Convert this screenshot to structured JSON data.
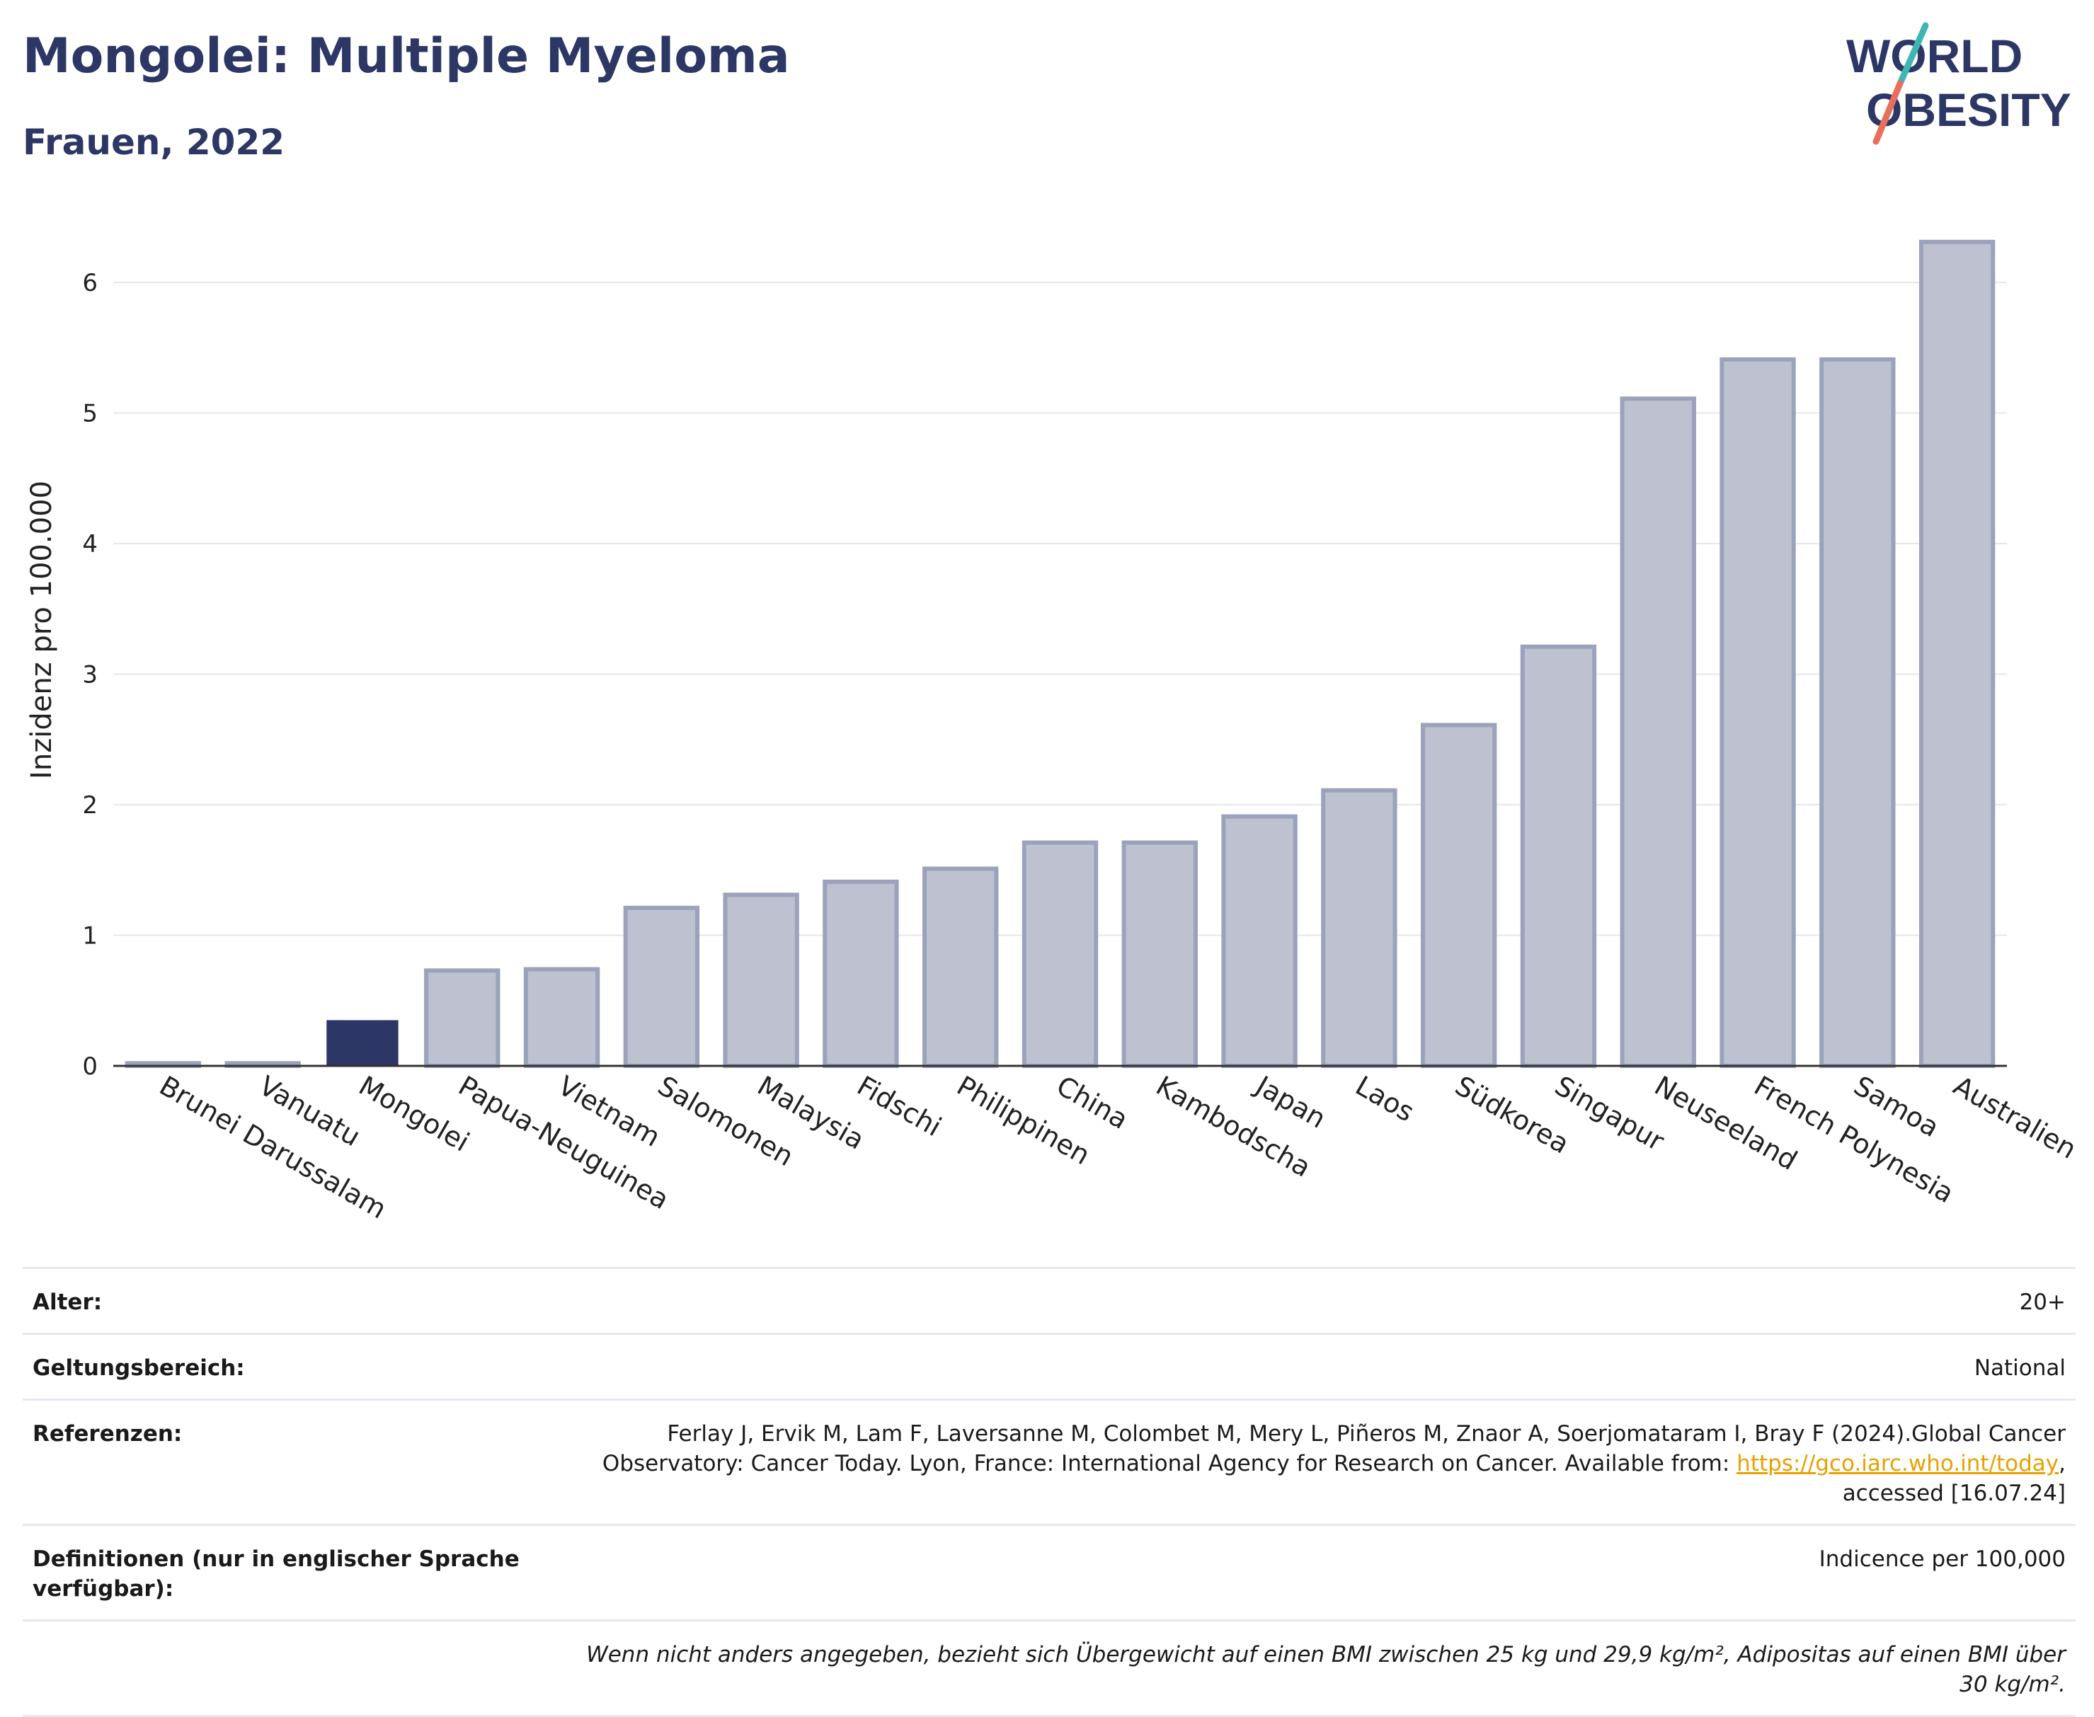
{
  "header": {
    "title": "Mongolei: Multiple Myeloma",
    "subtitle": "Frauen, 2022"
  },
  "logo": {
    "line1": "WORLD",
    "line2": "OBESITY",
    "accent_top": "#3fb6b3",
    "accent_bottom": "#e76f5c",
    "text_color": "#2c3765"
  },
  "colors": {
    "highlight": "#2c3765",
    "bar_fill": "#bdc1d0",
    "bar_stroke": "#9ba2bb",
    "grid": "#e5e7ee"
  },
  "chart_data": {
    "type": "bar",
    "categories": [
      "Brunei Darussalam",
      "Vanuatu",
      "Mongolei",
      "Papua-Neuguinea",
      "Vietnam",
      "Salomonen",
      "Malaysia",
      "Fidschi",
      "Philippinen",
      "China",
      "Kambodscha",
      "Japan",
      "Laos",
      "Südkorea",
      "Singapur",
      "Neuseeland",
      "French Polynesia",
      "Samoa",
      "Australien"
    ],
    "values": [
      0.02,
      0.02,
      0.35,
      0.73,
      0.74,
      1.21,
      1.31,
      1.41,
      1.51,
      1.71,
      1.71,
      1.91,
      2.11,
      2.61,
      3.21,
      5.11,
      5.41,
      5.41,
      6.31
    ],
    "highlight": "Mongolei",
    "ylabel": "Inzidenz pro 100.000",
    "xlabel": "",
    "ylim": [
      0,
      6.5
    ],
    "yticks": [
      0,
      1,
      2,
      3,
      4,
      5,
      6
    ],
    "grid": true
  },
  "info": {
    "age_label": "Alter:",
    "age_value": "20+",
    "scope_label": "Geltungsbereich:",
    "scope_value": "National",
    "ref_label": "Referenzen:",
    "ref_text_1": "Ferlay J, Ervik M, Lam F, Laversanne M, Colombet M, Mery L, Piñeros M, Znaor A, Soerjomataram I, Bray F (2024).Global Cancer Observatory: Cancer Today. Lyon, France: International Agency for Research on Cancer. Available from: ",
    "ref_link": "https://gco.iarc.who.int/today",
    "ref_text_2": ", accessed [16.07.24]",
    "def_label": "Definitionen (nur in englischer Sprache verfügbar):",
    "def_value": "Indicence per 100,000",
    "note": "Wenn nicht anders angegeben, bezieht sich Übergewicht auf einen BMI zwischen 25 kg und 29,9 kg/m², Adipositas auf einen BMI über 30 kg/m²."
  }
}
